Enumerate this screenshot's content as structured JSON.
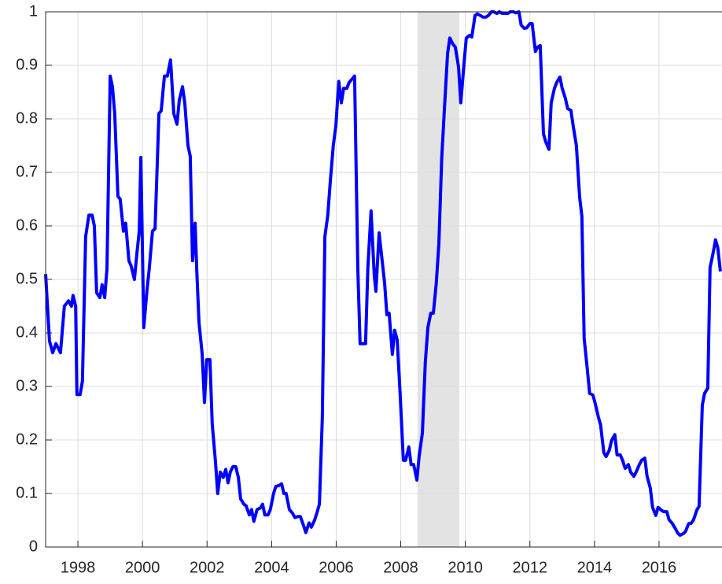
{
  "chart_data": {
    "type": "line",
    "x": [
      1997.0,
      1997.12,
      1997.22,
      1997.32,
      1997.46,
      1997.58,
      1997.71,
      1997.8,
      1997.85,
      1997.93,
      1997.97,
      1998.07,
      1998.14,
      1998.24,
      1998.34,
      1998.44,
      1998.51,
      1998.58,
      1998.68,
      1998.75,
      1998.83,
      1998.9,
      1999.0,
      1999.07,
      1999.14,
      1999.24,
      1999.31,
      1999.41,
      1999.48,
      1999.58,
      1999.65,
      1999.75,
      1999.83,
      1999.9,
      1999.95,
      2000.04,
      2000.14,
      2000.21,
      2000.31,
      2000.39,
      2000.51,
      2000.58,
      2000.68,
      2000.77,
      2000.87,
      2000.97,
      2001.07,
      2001.14,
      2001.24,
      2001.31,
      2001.41,
      2001.48,
      2001.55,
      2001.63,
      2001.68,
      2001.75,
      2001.85,
      2001.92,
      2001.99,
      2002.09,
      2002.16,
      2002.26,
      2002.33,
      2002.41,
      2002.5,
      2002.58,
      2002.65,
      2002.72,
      2002.8,
      2002.89,
      2002.97,
      2003.04,
      2003.14,
      2003.21,
      2003.31,
      2003.38,
      2003.45,
      2003.55,
      2003.65,
      2003.72,
      2003.79,
      2003.89,
      2003.96,
      2004.06,
      2004.13,
      2004.23,
      2004.31,
      2004.38,
      2004.45,
      2004.55,
      2004.65,
      2004.72,
      2004.82,
      2004.89,
      2004.99,
      2005.06,
      2005.16,
      2005.23,
      2005.33,
      2005.4,
      2005.48,
      2005.57,
      2005.65,
      2005.74,
      2005.82,
      2005.91,
      2005.99,
      2006.08,
      2006.16,
      2006.23,
      2006.33,
      2006.4,
      2006.5,
      2006.57,
      2006.67,
      2006.74,
      2006.84,
      2006.91,
      2006.98,
      2007.08,
      2007.18,
      2007.23,
      2007.33,
      2007.42,
      2007.5,
      2007.57,
      2007.64,
      2007.74,
      2007.81,
      2007.89,
      2007.98,
      2008.08,
      2008.15,
      2008.25,
      2008.32,
      2008.4,
      2008.5,
      2008.57,
      2008.67,
      2008.76,
      2008.84,
      2008.93,
      2009.01,
      2009.1,
      2009.18,
      2009.27,
      2009.35,
      2009.45,
      2009.52,
      2009.61,
      2009.69,
      2009.79,
      2009.86,
      2009.96,
      2010.03,
      2010.13,
      2010.2,
      2010.3,
      2010.37,
      2010.47,
      2010.54,
      2010.64,
      2010.71,
      2010.81,
      2010.88,
      2010.98,
      2011.05,
      2011.15,
      2011.22,
      2011.32,
      2011.39,
      2011.49,
      2011.56,
      2011.66,
      2011.73,
      2011.83,
      2011.9,
      2012.0,
      2012.07,
      2012.17,
      2012.24,
      2012.32,
      2012.42,
      2012.49,
      2012.59,
      2012.66,
      2012.76,
      2012.83,
      2012.93,
      2013.0,
      2013.1,
      2013.17,
      2013.27,
      2013.34,
      2013.44,
      2013.54,
      2013.61,
      2013.68,
      2013.78,
      2013.85,
      2013.95,
      2014.02,
      2014.12,
      2014.19,
      2014.29,
      2014.36,
      2014.46,
      2014.53,
      2014.63,
      2014.7,
      2014.8,
      2014.87,
      2014.95,
      2015.05,
      2015.12,
      2015.22,
      2015.29,
      2015.39,
      2015.46,
      2015.56,
      2015.63,
      2015.73,
      2015.8,
      2015.9,
      2015.97,
      2016.07,
      2016.14,
      2016.24,
      2016.31,
      2016.41,
      2016.48,
      2016.58,
      2016.65,
      2016.75,
      2016.82,
      2016.92,
      2016.99,
      2017.07,
      2017.17,
      2017.24,
      2017.34,
      2017.41,
      2017.51,
      2017.58,
      2017.68,
      2017.75,
      2017.82,
      2017.9
    ],
    "series": [
      {
        "color": "#0000ff",
        "values": [
          0.51,
          0.385,
          0.363,
          0.38,
          0.363,
          0.45,
          0.46,
          0.45,
          0.47,
          0.45,
          0.285,
          0.285,
          0.31,
          0.58,
          0.62,
          0.62,
          0.6,
          0.475,
          0.466,
          0.49,
          0.466,
          0.52,
          0.88,
          0.86,
          0.81,
          0.655,
          0.65,
          0.59,
          0.605,
          0.535,
          0.525,
          0.5,
          0.55,
          0.59,
          0.728,
          0.41,
          0.48,
          0.52,
          0.59,
          0.595,
          0.81,
          0.815,
          0.88,
          0.88,
          0.91,
          0.81,
          0.79,
          0.835,
          0.86,
          0.83,
          0.75,
          0.73,
          0.535,
          0.605,
          0.52,
          0.42,
          0.36,
          0.27,
          0.35,
          0.35,
          0.23,
          0.16,
          0.1,
          0.14,
          0.13,
          0.145,
          0.12,
          0.14,
          0.15,
          0.15,
          0.13,
          0.09,
          0.08,
          0.077,
          0.06,
          0.07,
          0.048,
          0.07,
          0.073,
          0.08,
          0.06,
          0.06,
          0.07,
          0.1,
          0.113,
          0.115,
          0.118,
          0.1,
          0.1,
          0.07,
          0.063,
          0.055,
          0.057,
          0.057,
          0.04,
          0.027,
          0.045,
          0.037,
          0.05,
          0.063,
          0.08,
          0.24,
          0.58,
          0.62,
          0.685,
          0.75,
          0.787,
          0.87,
          0.83,
          0.857,
          0.857,
          0.868,
          0.875,
          0.88,
          0.52,
          0.38,
          0.38,
          0.38,
          0.52,
          0.628,
          0.507,
          0.478,
          0.587,
          0.537,
          0.493,
          0.434,
          0.437,
          0.36,
          0.405,
          0.387,
          0.287,
          0.162,
          0.162,
          0.187,
          0.154,
          0.154,
          0.125,
          0.17,
          0.213,
          0.345,
          0.41,
          0.437,
          0.437,
          0.493,
          0.566,
          0.728,
          0.816,
          0.922,
          0.951,
          0.94,
          0.934,
          0.897,
          0.83,
          0.904,
          0.951,
          0.956,
          0.953,
          0.993,
          0.996,
          0.993,
          0.99,
          0.99,
          0.993,
          1.0,
          1.0,
          0.997,
          1.0,
          0.997,
          0.997,
          0.997,
          1.0,
          1.0,
          0.998,
          1.0,
          0.975,
          0.969,
          0.97,
          0.978,
          0.978,
          0.926,
          0.934,
          0.937,
          0.772,
          0.757,
          0.743,
          0.83,
          0.857,
          0.868,
          0.878,
          0.857,
          0.838,
          0.819,
          0.816,
          0.787,
          0.75,
          0.654,
          0.618,
          0.39,
          0.331,
          0.287,
          0.284,
          0.269,
          0.243,
          0.228,
          0.176,
          0.169,
          0.181,
          0.199,
          0.21,
          0.172,
          0.172,
          0.162,
          0.147,
          0.154,
          0.14,
          0.132,
          0.14,
          0.154,
          0.162,
          0.166,
          0.132,
          0.11,
          0.074,
          0.059,
          0.074,
          0.069,
          0.066,
          0.066,
          0.051,
          0.044,
          0.037,
          0.026,
          0.022,
          0.025,
          0.029,
          0.044,
          0.044,
          0.051,
          0.069,
          0.076,
          0.265,
          0.287,
          0.297,
          0.522,
          0.551,
          0.574,
          0.559,
          0.515
        ]
      }
    ],
    "shaded_regions": [
      {
        "x": [
          2008.52,
          2009.81
        ],
        "color": "#e3e3e3"
      }
    ],
    "xlim": [
      1997,
      2017.95
    ],
    "xticks": [
      1998,
      2000,
      2002,
      2004,
      2006,
      2008,
      2010,
      2012,
      2014,
      2016
    ],
    "ylim": [
      0,
      1
    ],
    "yticks": [
      0,
      0.1,
      0.2,
      0.3,
      0.4,
      0.5,
      0.6,
      0.7,
      0.8,
      0.9,
      1
    ],
    "grid": true
  }
}
